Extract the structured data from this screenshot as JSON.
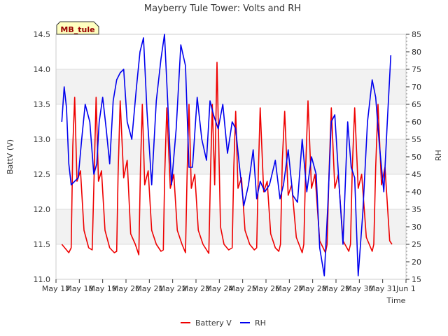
{
  "chart_data": {
    "type": "line",
    "title": "Mayberry Tule Tower: Volts and RH",
    "xlabel": "Time",
    "ylabel_left": "BattV (V)",
    "ylabel_right": "RH",
    "station_label": "MB_tule",
    "x_ticks": [
      "May 17",
      "May 18",
      "May 19",
      "May 20",
      "May 21",
      "May 22",
      "May 23",
      "May 24",
      "May 25",
      "May 26",
      "May 27",
      "May 28",
      "May 29",
      "May 30",
      "May 31",
      "Jun 1"
    ],
    "xlim_days": [
      17,
      32
    ],
    "ylim_left": [
      11.0,
      14.5
    ],
    "y_ticks_left": [
      "11.0",
      "11.5",
      "12.0",
      "12.5",
      "13.0",
      "13.5",
      "14.0",
      "14.5"
    ],
    "ylim_right": [
      15,
      85
    ],
    "y_ticks_right": [
      "15",
      "20",
      "25",
      "30",
      "35",
      "40",
      "45",
      "50",
      "55",
      "60",
      "65",
      "70",
      "75",
      "80",
      "85"
    ],
    "grid": true,
    "legend_position": "bottom-center",
    "series": [
      {
        "name": "Battery V",
        "color": "#ee0000",
        "axis": "left",
        "x": [
          17.25,
          17.45,
          17.55,
          17.65,
          17.72,
          17.8,
          17.9,
          18.05,
          18.2,
          18.4,
          18.55,
          18.62,
          18.72,
          18.82,
          18.95,
          19.1,
          19.3,
          19.5,
          19.6,
          19.66,
          19.75,
          19.9,
          20.05,
          20.2,
          20.4,
          20.55,
          20.62,
          20.7,
          20.8,
          20.95,
          21.1,
          21.3,
          21.5,
          21.6,
          21.66,
          21.75,
          21.9,
          22.05,
          22.2,
          22.4,
          22.55,
          22.62,
          22.7,
          22.8,
          22.95,
          23.1,
          23.3,
          23.55,
          23.62,
          23.7,
          23.8,
          23.9,
          24.05,
          24.2,
          24.4,
          24.55,
          24.62,
          24.7,
          24.8,
          24.95,
          25.1,
          25.3,
          25.5,
          25.6,
          25.67,
          25.75,
          25.9,
          26.05,
          26.2,
          26.4,
          26.55,
          26.62,
          26.7,
          26.8,
          26.95,
          27.1,
          27.3,
          27.55,
          27.62,
          27.7,
          27.8,
          27.95,
          28.1,
          28.3,
          28.55,
          28.62,
          28.7,
          28.8,
          28.95,
          29.1,
          29.3,
          29.55,
          29.62,
          29.7,
          29.8,
          29.95,
          30.1,
          30.3,
          30.55,
          30.62,
          30.7,
          30.8,
          30.95,
          31.1,
          31.3,
          31.4
        ],
        "values": [
          11.5,
          11.42,
          11.38,
          11.45,
          12.9,
          13.6,
          12.4,
          12.55,
          11.7,
          11.45,
          11.42,
          12.3,
          13.6,
          12.4,
          12.55,
          11.7,
          11.45,
          11.38,
          11.4,
          12.5,
          13.55,
          12.45,
          12.7,
          11.65,
          11.5,
          11.35,
          12.6,
          13.5,
          12.35,
          12.55,
          11.7,
          11.5,
          11.4,
          11.42,
          12.5,
          13.45,
          12.3,
          12.5,
          11.7,
          11.5,
          11.38,
          12.5,
          13.5,
          12.3,
          12.5,
          11.7,
          11.5,
          11.37,
          12.5,
          13.5,
          12.35,
          14.1,
          11.75,
          11.5,
          11.42,
          11.45,
          12.6,
          13.4,
          12.3,
          12.45,
          11.7,
          11.5,
          11.42,
          11.45,
          12.5,
          13.45,
          12.25,
          12.4,
          11.65,
          11.45,
          11.4,
          11.5,
          12.7,
          13.4,
          12.2,
          12.35,
          11.6,
          11.38,
          11.5,
          12.6,
          13.55,
          12.3,
          12.5,
          11.55,
          11.38,
          11.5,
          12.5,
          13.45,
          12.3,
          12.5,
          11.55,
          11.4,
          11.5,
          12.6,
          13.45,
          12.3,
          12.5,
          11.6,
          11.4,
          11.5,
          12.6,
          13.5,
          12.35,
          12.6,
          11.55,
          11.5
        ]
      },
      {
        "name": "RH",
        "color": "#0000ee",
        "axis": "right",
        "x": [
          17.25,
          17.35,
          17.45,
          17.55,
          17.65,
          17.8,
          17.95,
          18.1,
          18.25,
          18.45,
          18.62,
          18.75,
          18.85,
          19.0,
          19.15,
          19.3,
          19.45,
          19.6,
          19.75,
          19.9,
          20.05,
          20.25,
          20.45,
          20.6,
          20.75,
          20.9,
          21.1,
          21.3,
          21.5,
          21.65,
          21.8,
          21.95,
          22.15,
          22.35,
          22.55,
          22.7,
          22.85,
          23.05,
          23.25,
          23.45,
          23.6,
          23.75,
          23.95,
          24.15,
          24.35,
          24.55,
          24.7,
          24.85,
          25.05,
          25.25,
          25.45,
          25.6,
          25.75,
          25.95,
          26.15,
          26.4,
          26.6,
          26.75,
          26.95,
          27.15,
          27.35,
          27.55,
          27.75,
          27.95,
          28.15,
          28.3,
          28.5,
          28.65,
          28.8,
          28.95,
          29.15,
          29.3,
          29.5,
          29.65,
          29.8,
          29.95,
          30.15,
          30.35,
          30.55,
          30.7,
          30.85,
          31.05,
          31.2,
          31.35
        ],
        "values": [
          60,
          70,
          64,
          48,
          42,
          43,
          44,
          55,
          65,
          60,
          45,
          48,
          60,
          67,
          58,
          48,
          66,
          72,
          74,
          75,
          60,
          55,
          70,
          80,
          84,
          63,
          42,
          66,
          78,
          85,
          64,
          42,
          58,
          82,
          76,
          47,
          47,
          67,
          55,
          49,
          66,
          62,
          58,
          65,
          51,
          60,
          58,
          48,
          36,
          42,
          52,
          38,
          43,
          40,
          42,
          49,
          38,
          42,
          52,
          39,
          37,
          55,
          40,
          50,
          45,
          24,
          16,
          36,
          60,
          62,
          40,
          25,
          60,
          47,
          44,
          16,
          34,
          60,
          72,
          67,
          54,
          40,
          60,
          79
        ]
      }
    ]
  }
}
